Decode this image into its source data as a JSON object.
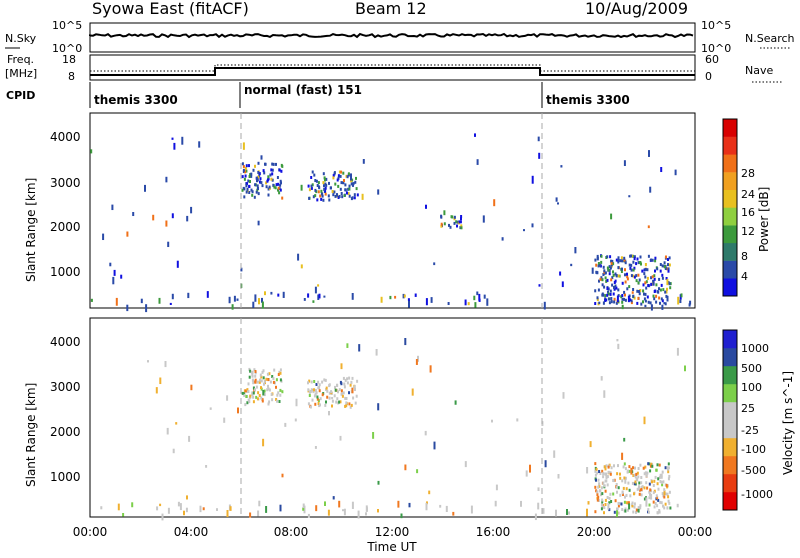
{
  "header": {
    "station": "Syowa East (fitACF)",
    "beam": "Beam 12",
    "date": "10/Aug/2009"
  },
  "top_panels": {
    "nsky_label": "N.Sky",
    "nsky_ticks": [
      "10^5",
      "10^0"
    ],
    "nsearch_label": "N.Search",
    "freq_label": "Freq.",
    "freq_unit": "[MHz]",
    "freq_ticks": [
      "18",
      "8"
    ],
    "nave_ticks": [
      "60",
      "0"
    ],
    "nave_label": "Nave",
    "cpid_label": "CPID",
    "cpid_segments": [
      {
        "label": "themis 3300",
        "start_h": 0,
        "end_h": 6
      },
      {
        "label": "normal (fast) 151",
        "start_h": 6,
        "end_h": 18
      },
      {
        "label": "themis 3300",
        "start_h": 18,
        "end_h": 24
      }
    ]
  },
  "colors": {
    "power_scale": [
      "#1010e0",
      "#2a4aa8",
      "#2e7a6a",
      "#3c9a3c",
      "#8fcf3f",
      "#e8c020",
      "#f0a020",
      "#f07018",
      "#e83018",
      "#d80000"
    ],
    "velocity_scale": [
      "#e00000",
      "#e83c10",
      "#f07820",
      "#f0b030",
      "#c8c8c8",
      "#c8c8c8",
      "#7ccf4a",
      "#3a9a48",
      "#2a4aa0",
      "#2020d0"
    ]
  },
  "chart_data": [
    {
      "type": "heatmap",
      "name": "power",
      "xlabel": "",
      "ylabel": "Slant Range [km]",
      "xlim_hours": [
        0,
        24
      ],
      "ylim_km": [
        180,
        4600
      ],
      "yticks": [
        "1000",
        "2000",
        "3000",
        "4000"
      ],
      "colorbar_label": "Power [dB]",
      "colorbar_ticks": [
        "4",
        "8",
        "12",
        "16",
        "20",
        "24",
        "28"
      ],
      "echo_regions": [
        {
          "t_start": 6.0,
          "t_end": 7.6,
          "r_min": 2700,
          "r_max": 3500,
          "level": "low"
        },
        {
          "t_start": 8.6,
          "t_end": 10.6,
          "r_min": 2650,
          "r_max": 3300,
          "level": "low-mid"
        },
        {
          "t_start": 20.0,
          "t_end": 23.0,
          "r_min": 300,
          "r_max": 1400,
          "level": "low"
        },
        {
          "t_start": 13.8,
          "t_end": 14.8,
          "r_min": 2000,
          "r_max": 2300,
          "level": "low"
        }
      ]
    },
    {
      "type": "heatmap",
      "name": "velocity",
      "xlabel": "Time UT",
      "ylabel": "Slant Range [km]",
      "xlim_hours": [
        0,
        24
      ],
      "ylim_km": [
        180,
        4600
      ],
      "xticks": [
        "00:00",
        "04:00",
        "08:00",
        "12:00",
        "16:00",
        "20:00",
        "00:00"
      ],
      "yticks": [
        "1000",
        "2000",
        "3000",
        "4000"
      ],
      "colorbar_label": "Velocity [m s^-1]",
      "colorbar_ticks": [
        "1000",
        "500",
        "100",
        "25",
        "-25",
        "-100",
        "-500",
        "-1000"
      ],
      "echo_regions": [
        {
          "t_start": 6.0,
          "t_end": 7.6,
          "r_min": 2700,
          "r_max": 3500,
          "level": "near-zero"
        },
        {
          "t_start": 8.6,
          "t_end": 10.6,
          "r_min": 2650,
          "r_max": 3300,
          "level": "near-zero"
        },
        {
          "t_start": 20.0,
          "t_end": 23.0,
          "r_min": 300,
          "r_max": 1400,
          "level": "mixed"
        }
      ]
    }
  ]
}
